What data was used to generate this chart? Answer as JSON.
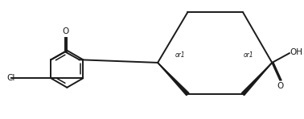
{
  "background": "#ffffff",
  "line_color": "#1a1a1a",
  "line_width": 1.4,
  "font_size_label": 7.5,
  "font_size_or1": 5.5,
  "figsize": [
    3.78,
    1.48
  ],
  "dpi": 100,
  "xlim": [
    0,
    3.78
  ],
  "ylim": [
    0,
    1.48
  ]
}
